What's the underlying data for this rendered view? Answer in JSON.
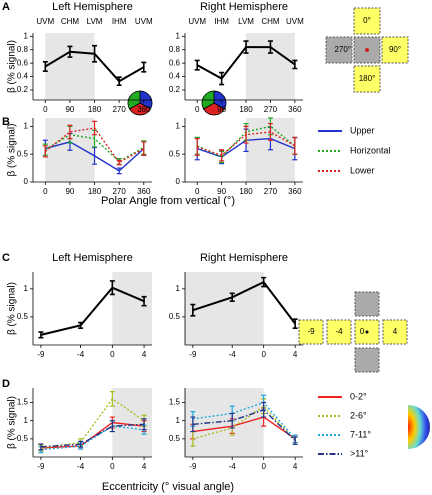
{
  "chart_data": [
    {
      "type": "line",
      "title": "Left Hemisphere",
      "ylabel": "β (% signal)",
      "top_labels": [
        "UVM",
        "CHM",
        "LVM",
        "IHM",
        "UVM"
      ],
      "x": [
        0,
        90,
        180,
        270,
        360
      ],
      "xlim": [
        -45,
        390
      ],
      "xticks": [
        0,
        90,
        180,
        270,
        360
      ],
      "ylim": [
        0.05,
        1.05
      ],
      "yticks": [
        0.2,
        0.4,
        0.6,
        0.8,
        1
      ],
      "shade": [
        0,
        180
      ],
      "series": [
        {
          "color": "#000000",
          "line_style": "solid",
          "values": [
            0.55,
            0.77,
            0.74,
            0.33,
            0.54
          ],
          "errors": [
            0.07,
            0.08,
            0.12,
            0.06,
            0.07
          ]
        }
      ]
    },
    {
      "type": "line",
      "title": "Right Hemisphere",
      "top_labels": [
        "UVM",
        "IHM",
        "LVM",
        "CHM",
        "UVM"
      ],
      "x": [
        0,
        90,
        180,
        270,
        360
      ],
      "xlim": [
        -45,
        390
      ],
      "xticks": [
        0,
        90,
        180,
        270,
        360
      ],
      "ylim": [
        0.05,
        1.05
      ],
      "yticks": [
        0.2,
        0.4,
        0.6,
        0.8,
        1
      ],
      "shade": [
        180,
        360
      ],
      "series": [
        {
          "color": "#000000",
          "line_style": "solid",
          "values": [
            0.57,
            0.37,
            0.84,
            0.84,
            0.58
          ],
          "errors": [
            0.07,
            0.09,
            0.09,
            0.09,
            0.06
          ]
        }
      ]
    },
    {
      "type": "line",
      "ylabel": "β (% signal)",
      "x": [
        0,
        90,
        180,
        270,
        360
      ],
      "xlim": [
        -45,
        390
      ],
      "xticks": [
        0,
        90,
        180,
        270,
        360
      ],
      "ylim": [
        0,
        1.15
      ],
      "yticks": [
        0,
        0.5,
        1
      ],
      "shade": [
        0,
        180
      ],
      "series": [
        {
          "name": "Upper",
          "color": "#2233cc",
          "line_style": "solid",
          "values": [
            0.6,
            0.72,
            0.47,
            0.2,
            0.6
          ],
          "errors": [
            0.15,
            0.15,
            0.15,
            0.05,
            0.12
          ]
        },
        {
          "name": "Horizontal",
          "color": "#22aa22",
          "line_style": "dotted",
          "values": [
            0.58,
            0.85,
            0.78,
            0.37,
            0.62
          ],
          "errors": [
            0.1,
            0.15,
            0.15,
            0.05,
            0.12
          ]
        },
        {
          "name": "Lower",
          "color": "#dd2222",
          "line_style": "dotted",
          "values": [
            0.55,
            0.9,
            0.97,
            0.35,
            0.6
          ],
          "errors": [
            0.1,
            0.12,
            0.12,
            0.04,
            0.12
          ]
        }
      ]
    },
    {
      "type": "line",
      "legend": "right",
      "x": [
        0,
        90,
        180,
        270,
        360
      ],
      "xlim": [
        -45,
        390
      ],
      "xticks": [
        0,
        90,
        180,
        270,
        360
      ],
      "ylim": [
        0,
        1.15
      ],
      "yticks": [
        0,
        0.5,
        1
      ],
      "shade": [
        180,
        360
      ],
      "series": [
        {
          "name": "Upper",
          "color": "#2233cc",
          "line_style": "solid",
          "values": [
            0.6,
            0.45,
            0.75,
            0.78,
            0.6
          ],
          "errors": [
            0.2,
            0.12,
            0.2,
            0.2,
            0.2
          ]
        },
        {
          "name": "Horizontal",
          "color": "#22aa22",
          "line_style": "dotted",
          "values": [
            0.65,
            0.45,
            0.9,
            1.0,
            0.65
          ],
          "errors": [
            0.15,
            0.1,
            0.15,
            0.15,
            0.15
          ]
        },
        {
          "name": "Lower",
          "color": "#dd2222",
          "line_style": "dotted",
          "values": [
            0.63,
            0.48,
            0.85,
            0.9,
            0.65
          ],
          "errors": [
            0.15,
            0.1,
            0.15,
            0.15,
            0.15
          ]
        }
      ]
    },
    {
      "type": "line",
      "title": "Left Hemisphere",
      "ylabel": "β (% signal)",
      "x": [
        -9,
        -4,
        0,
        4
      ],
      "xlim": [
        -10,
        5
      ],
      "xticks": [
        -9,
        -4,
        0,
        4
      ],
      "ylim": [
        0,
        1.3
      ],
      "yticks": [
        0.5,
        1
      ],
      "shade": [
        0,
        5
      ],
      "series": [
        {
          "color": "#000000",
          "line_style": "solid",
          "values": [
            0.18,
            0.35,
            1.02,
            0.78
          ],
          "errors": [
            0.05,
            0.05,
            0.12,
            0.08
          ]
        }
      ]
    },
    {
      "type": "line",
      "title": "Right Hemisphere",
      "x": [
        -9,
        -4,
        0,
        4
      ],
      "xlim": [
        -10,
        5
      ],
      "xticks": [
        -9,
        -4,
        0,
        4
      ],
      "ylim": [
        0,
        1.3
      ],
      "yticks": [
        0.5,
        1
      ],
      "shade": [
        -10,
        0
      ],
      "series": [
        {
          "color": "#000000",
          "line_style": "solid",
          "values": [
            0.62,
            0.85,
            1.12,
            0.38
          ],
          "errors": [
            0.1,
            0.07,
            0.08,
            0.08
          ]
        }
      ]
    },
    {
      "type": "line",
      "ylabel": "β (% signal)",
      "x": [
        -9,
        -4,
        0,
        4
      ],
      "xlim": [
        -10,
        5
      ],
      "xticks": [
        -9,
        -4,
        0,
        4
      ],
      "ylim": [
        0,
        1.9
      ],
      "yticks": [
        0.5,
        1,
        1.5
      ],
      "shade": [
        0,
        5
      ],
      "series": [
        {
          "name": "0-2°",
          "color": "#ee2222",
          "line_style": "solid",
          "values": [
            0.25,
            0.3,
            0.95,
            0.85
          ],
          "errors": [
            0.08,
            0.08,
            0.15,
            0.15
          ]
        },
        {
          "name": "2-6°",
          "color": "#aabb22",
          "line_style": "dotted",
          "values": [
            0.25,
            0.4,
            1.6,
            1.0
          ],
          "errors": [
            0.08,
            0.1,
            0.2,
            0.15
          ]
        },
        {
          "name": "7-11°",
          "color": "#22aadd",
          "line_style": "dotted",
          "values": [
            0.2,
            0.3,
            0.85,
            0.75
          ],
          "errors": [
            0.08,
            0.08,
            0.15,
            0.12
          ]
        },
        {
          "name": ">11°",
          "color": "#223388",
          "line_style": "dashdot",
          "values": [
            0.28,
            0.35,
            0.85,
            0.9
          ],
          "errors": [
            0.08,
            0.08,
            0.15,
            0.15
          ]
        }
      ]
    },
    {
      "type": "line",
      "legend": "right",
      "x": [
        -9,
        -4,
        0,
        4
      ],
      "xlim": [
        -10,
        5
      ],
      "xticks": [
        -9,
        -4,
        0,
        4
      ],
      "ylim": [
        0,
        1.9
      ],
      "yticks": [
        0.5,
        1,
        1.5
      ],
      "shade": [
        -10,
        0
      ],
      "series": [
        {
          "name": "0-2°",
          "color": "#ee2222",
          "line_style": "solid",
          "values": [
            0.7,
            0.85,
            1.1,
            0.5
          ],
          "errors": [
            0.2,
            0.2,
            0.25,
            0.1
          ]
        },
        {
          "name": "2-6°",
          "color": "#aabb22",
          "line_style": "dotted",
          "values": [
            0.5,
            0.8,
            1.4,
            0.45
          ],
          "errors": [
            0.2,
            0.2,
            0.2,
            0.1
          ]
        },
        {
          "name": "7-11°",
          "color": "#22aadd",
          "line_style": "dotted",
          "values": [
            1.05,
            1.2,
            1.5,
            0.5
          ],
          "errors": [
            0.2,
            0.2,
            0.2,
            0.1
          ]
        },
        {
          "name": ">11°",
          "color": "#223388",
          "line_style": "dashdot",
          "values": [
            0.9,
            1.0,
            1.3,
            0.45
          ],
          "errors": [
            0.2,
            0.2,
            0.2,
            0.1
          ]
        }
      ]
    }
  ],
  "figure": {
    "panels": [
      "A",
      "B",
      "C",
      "D"
    ],
    "x_titles": [
      "Polar Angle from vertical (°)",
      "Eccentricity (° visual angle)"
    ]
  },
  "diagram_polar": {
    "labels": [
      "0°",
      "270°",
      "90°",
      "180°"
    ]
  },
  "diagram_ecc": {
    "labels": [
      "-9",
      "-4",
      "0",
      "4"
    ]
  }
}
